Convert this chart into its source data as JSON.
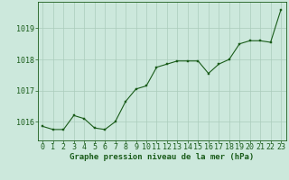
{
  "x": [
    0,
    1,
    2,
    3,
    4,
    5,
    6,
    7,
    8,
    9,
    10,
    11,
    12,
    13,
    14,
    15,
    16,
    17,
    18,
    19,
    20,
    21,
    22,
    23
  ],
  "y": [
    1015.85,
    1015.75,
    1015.75,
    1016.2,
    1016.1,
    1015.8,
    1015.75,
    1016.0,
    1016.65,
    1017.05,
    1017.15,
    1017.75,
    1017.85,
    1017.95,
    1017.95,
    1017.95,
    1017.55,
    1017.85,
    1018.0,
    1018.5,
    1018.6,
    1018.6,
    1018.55,
    1019.6
  ],
  "line_color": "#1a5c1a",
  "marker_color": "#1a5c1a",
  "bg_color": "#cce8dc",
  "grid_color": "#aaccbb",
  "xlabel": "Graphe pression niveau de la mer (hPa)",
  "xlabel_color": "#1a5c1a",
  "ylabel_ticks": [
    1016,
    1017,
    1018,
    1019
  ],
  "ylim": [
    1015.4,
    1019.85
  ],
  "xlim": [
    -0.5,
    23.5
  ],
  "tick_color": "#1a5c1a",
  "border_color": "#1a5c1a",
  "xlabel_fontsize": 6.5,
  "tick_fontsize": 6.0
}
